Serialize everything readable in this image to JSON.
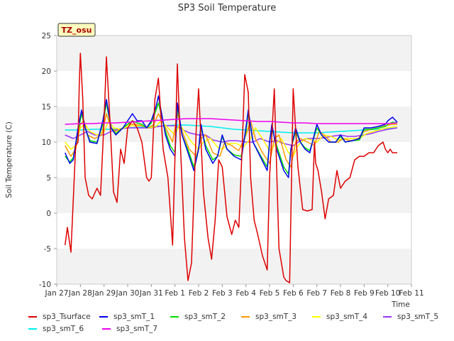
{
  "chart_data": {
    "type": "line",
    "title": "SP3 Soil Temperature",
    "xlabel": "Time",
    "ylabel": "Soil Temperature (C)",
    "annotation": "TZ_osu",
    "ylim": [
      -10,
      25
    ],
    "yticks": [
      -10,
      -5,
      0,
      5,
      10,
      15,
      20,
      25
    ],
    "xlim": [
      0,
      15
    ],
    "xtick_labels": [
      "Jan 27",
      "Jan 28",
      "Jan 29",
      "Jan 30",
      "Jan 31",
      "Feb 1",
      "Feb 2",
      "Feb 3",
      "Feb 4",
      "Feb 5",
      "Feb 6",
      "Feb 7",
      "Feb 8",
      "Feb 9",
      "Feb 10",
      "Feb 11"
    ],
    "grid": "horizontal bands",
    "legend_position": "bottom",
    "series": [
      {
        "name": "sp3_Tsurface",
        "color": "#dd0000",
        "x": [
          0.35,
          0.45,
          0.6,
          0.8,
          0.9,
          0.95,
          1.0,
          1.1,
          1.2,
          1.35,
          1.5,
          1.7,
          1.85,
          2.0,
          2.1,
          2.25,
          2.4,
          2.55,
          2.7,
          2.85,
          3.0,
          3.2,
          3.4,
          3.6,
          3.8,
          3.9,
          4.0,
          4.15,
          4.3,
          4.5,
          4.7,
          4.9,
          5.0,
          5.1,
          5.25,
          5.4,
          5.55,
          5.7,
          5.9,
          6.0,
          6.2,
          6.4,
          6.55,
          6.7,
          6.85,
          7.0,
          7.2,
          7.4,
          7.55,
          7.7,
          7.85,
          7.95,
          8.1,
          8.2,
          8.35,
          8.5,
          8.7,
          8.9,
          9.0,
          9.2,
          9.4,
          9.5,
          9.6,
          9.7,
          9.85,
          10.0,
          10.2,
          10.4,
          10.6,
          10.8,
          10.9,
          10.95,
          11.05,
          11.2,
          11.35,
          11.5,
          11.7,
          11.85,
          12.0,
          12.2,
          12.4,
          12.6,
          12.8,
          13.0,
          13.2,
          13.4,
          13.6,
          13.8,
          13.9,
          14.0,
          14.1,
          14.2,
          14.4
        ],
        "values": [
          -4.5,
          -2.0,
          -5.5,
          9.5,
          10,
          18,
          22.5,
          16,
          5,
          2.5,
          2,
          3.5,
          2.5,
          13,
          22,
          13,
          3.0,
          1.5,
          9,
          7,
          12,
          13,
          12,
          10,
          5,
          4.5,
          5,
          16,
          19,
          9,
          5,
          -4.5,
          8,
          21,
          8,
          -3.5,
          -9.5,
          -7,
          12,
          17.5,
          3,
          -3.5,
          -6.5,
          -1,
          7.5,
          6.5,
          -0.5,
          -3,
          -1,
          -2,
          10,
          19.5,
          17,
          5,
          -1,
          -3,
          -6,
          -8,
          5,
          17.5,
          -5,
          -7,
          -9,
          -9.5,
          -9.8,
          17.5,
          6.5,
          0.5,
          0.3,
          0.5,
          10,
          7,
          6,
          3,
          -0.8,
          2,
          2.5,
          6,
          3.5,
          4.5,
          5,
          7.5,
          8,
          8,
          8.5,
          8.5,
          9.5,
          10,
          9,
          8.5,
          9,
          8.5,
          8.5
        ]
      },
      {
        "name": "sp3_smT_1",
        "color": "#0000ee",
        "x": [
          0.35,
          0.55,
          0.7,
          0.9,
          1.05,
          1.2,
          1.4,
          1.7,
          1.95,
          2.1,
          2.3,
          2.5,
          2.8,
          3.0,
          3.2,
          3.4,
          3.6,
          3.8,
          4.0,
          4.2,
          4.3,
          4.6,
          4.8,
          5.0,
          5.1,
          5.3,
          5.6,
          5.8,
          6.0,
          6.1,
          6.3,
          6.6,
          6.8,
          7.0,
          7.2,
          7.5,
          7.8,
          8.0,
          8.1,
          8.3,
          8.6,
          8.9,
          9.0,
          9.1,
          9.3,
          9.6,
          9.8,
          9.9,
          10.1,
          10.3,
          10.5,
          10.7,
          11.0,
          11.2,
          11.5,
          11.8,
          12.0,
          12.2,
          12.5,
          12.8,
          13.0,
          13.3,
          13.6,
          13.9,
          14.0,
          14.2,
          14.4
        ],
        "values": [
          8.5,
          7.0,
          7.5,
          12,
          14.5,
          12,
          10,
          9.8,
          13,
          16,
          12,
          11,
          12,
          13,
          14,
          13,
          13,
          12,
          13,
          15,
          16.5,
          11,
          9,
          8,
          15.5,
          11,
          8,
          6,
          9,
          12.5,
          9,
          7,
          8,
          11,
          9,
          8,
          7.5,
          12,
          14.5,
          10,
          8,
          6,
          10,
          12.5,
          9,
          6,
          5,
          9,
          12,
          10,
          9,
          8.5,
          12.5,
          11,
          10,
          10,
          11,
          10,
          10.2,
          10.5,
          12,
          12,
          12.2,
          12.5,
          13,
          13.5,
          12.8
        ]
      },
      {
        "name": "sp3_smT_2",
        "color": "#00dd00",
        "x": [
          0.35,
          0.55,
          0.7,
          0.9,
          1.05,
          1.2,
          1.4,
          1.7,
          1.95,
          2.1,
          2.3,
          2.5,
          2.8,
          3.0,
          3.2,
          3.4,
          3.6,
          3.8,
          4.0,
          4.2,
          4.3,
          4.6,
          4.8,
          5.0,
          5.1,
          5.3,
          5.6,
          5.8,
          6.0,
          6.1,
          6.3,
          6.6,
          6.8,
          7.0,
          7.2,
          7.5,
          7.8,
          8.0,
          8.1,
          8.3,
          8.6,
          8.9,
          9.0,
          9.1,
          9.3,
          9.6,
          9.8,
          9.9,
          10.1,
          10.3,
          10.5,
          10.7,
          11.0,
          11.2,
          11.5,
          11.8,
          12.0,
          12.2,
          12.5,
          12.8,
          13.0,
          13.3,
          13.6,
          13.9,
          14.0,
          14.2,
          14.4
        ],
        "values": [
          8,
          7.2,
          7.8,
          11.5,
          14,
          12,
          10.2,
          10,
          12.5,
          15.5,
          12,
          11.2,
          12,
          12.5,
          13,
          12.7,
          12.5,
          12,
          12.7,
          14.5,
          15.5,
          11.5,
          9.5,
          8.5,
          15,
          11,
          8.5,
          6.5,
          9,
          12,
          9.5,
          7.5,
          8,
          10.8,
          9,
          8.2,
          8,
          11.5,
          14,
          10,
          8.2,
          6.5,
          10,
          12,
          9.5,
          6.5,
          5.5,
          9,
          11.5,
          10,
          9.2,
          8.8,
          12,
          11,
          10,
          10,
          10.8,
          10,
          10.2,
          10.3,
          11.8,
          11.8,
          12,
          12.2,
          12.5,
          12.8,
          12.7
        ]
      },
      {
        "name": "sp3_smT_3",
        "color": "#ff9900",
        "x": [
          0.35,
          0.6,
          0.8,
          1.0,
          1.15,
          1.3,
          1.6,
          1.9,
          2.1,
          2.3,
          2.5,
          2.8,
          3.0,
          3.3,
          3.6,
          3.9,
          4.1,
          4.3,
          4.6,
          4.9,
          5.1,
          5.3,
          5.6,
          5.9,
          6.1,
          6.3,
          6.6,
          6.9,
          7.1,
          7.4,
          7.7,
          8.0,
          8.2,
          8.4,
          8.7,
          9.0,
          9.2,
          9.4,
          9.7,
          9.9,
          10.1,
          10.3,
          10.6,
          10.9,
          11.1,
          11.3,
          11.6,
          11.9,
          12.1,
          12.4,
          12.7,
          13.0,
          13.3,
          13.6,
          13.9,
          14.2,
          14.4
        ],
        "values": [
          9.5,
          8,
          9,
          12.5,
          13,
          11,
          10.5,
          11,
          14,
          12,
          11.5,
          12,
          12.5,
          12.5,
          12.3,
          12,
          12.5,
          14,
          12,
          10,
          14,
          11.5,
          9,
          8,
          10.5,
          11,
          8.5,
          8,
          10,
          9.5,
          8.8,
          11,
          13,
          10.5,
          8.5,
          7,
          10.5,
          11,
          7.5,
          6.5,
          10,
          10.5,
          10,
          9.5,
          11.5,
          11,
          10,
          10,
          10.5,
          10.2,
          10.3,
          11.5,
          11.8,
          12,
          12.3,
          12.5,
          12.5
        ]
      },
      {
        "name": "sp3_smT_4",
        "color": "#ffff00",
        "x": [
          0.35,
          0.6,
          0.8,
          1.0,
          1.2,
          1.4,
          1.7,
          2.0,
          2.2,
          2.4,
          2.7,
          3.0,
          3.3,
          3.6,
          3.9,
          4.2,
          4.4,
          4.7,
          5.0,
          5.2,
          5.4,
          5.7,
          6.0,
          6.2,
          6.5,
          6.8,
          7.0,
          7.3,
          7.6,
          7.9,
          8.2,
          8.4,
          8.7,
          9.0,
          9.2,
          9.5,
          9.8,
          10.0,
          10.2,
          10.5,
          10.8,
          11.0,
          11.3,
          11.6,
          11.9,
          12.2,
          12.5,
          12.8,
          13.1,
          13.4,
          13.7,
          14.0,
          14.4
        ],
        "values": [
          10,
          9,
          9.5,
          12,
          12.5,
          11.5,
          11,
          11.5,
          13,
          12,
          11.8,
          12.2,
          12.3,
          12.3,
          12,
          12.2,
          13,
          12,
          11,
          12.5,
          11.5,
          10,
          9,
          10,
          10.5,
          9.3,
          9,
          9.8,
          9.8,
          9.3,
          10.5,
          12,
          10.5,
          8.8,
          9.5,
          10.5,
          8.5,
          8,
          9.5,
          10.5,
          10.3,
          10,
          11,
          10.8,
          10.3,
          10.5,
          10.5,
          10.5,
          11.2,
          11.5,
          11.8,
          12,
          12.2
        ]
      },
      {
        "name": "sp3_smT_5",
        "color": "#9933ff",
        "x": [
          0.35,
          0.7,
          1.0,
          1.3,
          1.6,
          2.0,
          2.3,
          2.6,
          3.0,
          3.3,
          3.7,
          4.0,
          4.3,
          4.6,
          5.0,
          5.3,
          5.6,
          6.0,
          6.3,
          6.6,
          7.0,
          7.3,
          7.6,
          8.0,
          8.3,
          8.6,
          9.0,
          9.3,
          9.6,
          10.0,
          10.3,
          10.6,
          11.0,
          11.3,
          11.6,
          12.0,
          12.3,
          12.6,
          13.0,
          13.3,
          13.6,
          14.0,
          14.4
        ],
        "values": [
          11,
          10.5,
          11,
          11.5,
          11,
          11,
          11.5,
          11.8,
          12,
          12,
          12,
          12,
          12.2,
          12.3,
          12.3,
          11.8,
          11.3,
          11,
          11,
          10.3,
          10,
          10.2,
          10.2,
          10,
          10,
          10.5,
          10,
          10.2,
          9.8,
          9.5,
          10.2,
          10.5,
          10.5,
          10.6,
          10.8,
          11,
          10.8,
          10.8,
          11,
          11.2,
          11.5,
          11.8,
          12
        ]
      },
      {
        "name": "sp3_smT_6",
        "color": "#00eeee",
        "x": [
          0.35,
          1.0,
          1.5,
          2.0,
          2.5,
          3.0,
          3.5,
          4.0,
          4.5,
          5.0,
          5.5,
          6.0,
          6.5,
          7.0,
          7.5,
          8.0,
          8.5,
          9.0,
          9.5,
          10.0,
          10.5,
          11.0,
          11.5,
          12.0,
          12.5,
          13.0,
          13.5,
          14.0,
          14.4
        ],
        "values": [
          11.7,
          11.7,
          11.8,
          11.8,
          11.8,
          12.0,
          12.1,
          12.2,
          12.3,
          12.4,
          12.4,
          12.3,
          12.2,
          12.0,
          11.8,
          11.7,
          11.6,
          11.5,
          11.4,
          11.3,
          11.3,
          11.3,
          11.4,
          11.5,
          11.6,
          11.7,
          11.8,
          11.9,
          12.0
        ]
      },
      {
        "name": "sp3_smT_7",
        "color": "#ee00ee",
        "x": [
          0.35,
          1.0,
          1.5,
          2.0,
          2.5,
          3.0,
          3.5,
          4.0,
          4.5,
          5.0,
          5.5,
          6.0,
          6.5,
          7.0,
          7.5,
          8.0,
          8.5,
          9.0,
          9.5,
          10.0,
          10.5,
          11.0,
          11.5,
          12.0,
          12.5,
          13.0,
          13.5,
          14.0,
          14.4
        ],
        "values": [
          12.5,
          12.6,
          12.6,
          12.7,
          12.7,
          12.8,
          12.9,
          13.0,
          13.1,
          13.2,
          13.3,
          13.3,
          13.3,
          13.2,
          13.1,
          13.0,
          12.9,
          12.9,
          12.8,
          12.7,
          12.7,
          12.6,
          12.6,
          12.6,
          12.6,
          12.6,
          12.6,
          12.6,
          12.7
        ]
      }
    ]
  }
}
